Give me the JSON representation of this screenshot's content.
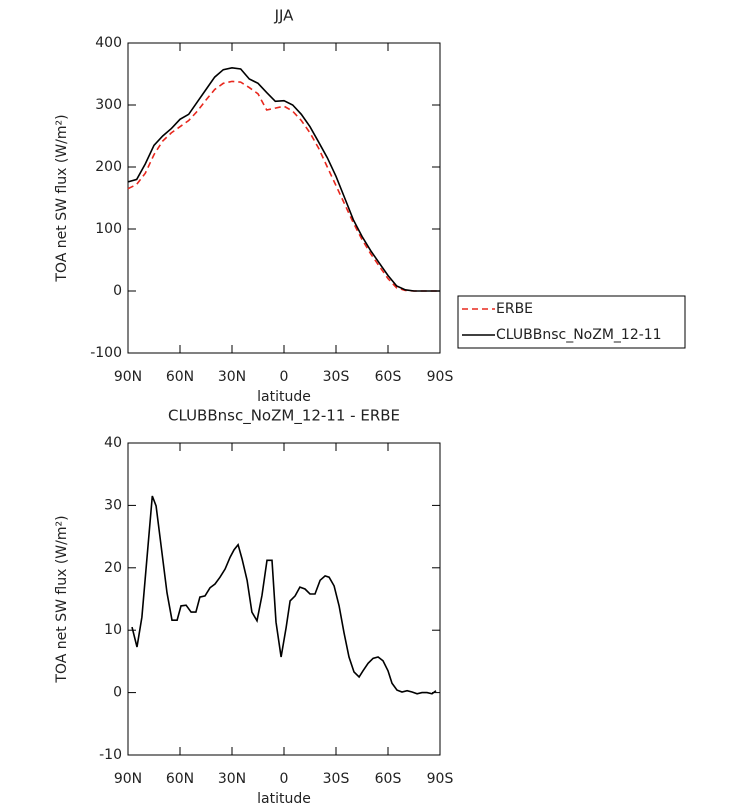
{
  "chart_data": [
    {
      "type": "line",
      "title": "JJA",
      "xlabel": "latitude",
      "ylabel": "TOA net SW flux (W/m²)",
      "x": [
        90,
        85,
        80,
        75,
        70,
        65,
        60,
        55,
        50,
        45,
        40,
        35,
        30,
        25,
        20,
        15,
        10,
        5,
        0,
        -5,
        -10,
        -15,
        -20,
        -25,
        -30,
        -35,
        -40,
        -45,
        -50,
        -55,
        -60,
        -65,
        -70,
        -75,
        -80,
        -85,
        -90
      ],
      "series": [
        {
          "name": "ERBE",
          "color": "#e8281e",
          "style": "dashed",
          "values": [
            165,
            172,
            190,
            220,
            242,
            255,
            265,
            275,
            290,
            308,
            325,
            335,
            338,
            337,
            328,
            318,
            292,
            295,
            298,
            290,
            275,
            255,
            230,
            200,
            170,
            140,
            110,
            83,
            60,
            40,
            20,
            5,
            1,
            0,
            0,
            0,
            0
          ]
        },
        {
          "name": "CLUBBnsc_NoZM_12-11",
          "color": "#000000",
          "style": "solid",
          "values": [
            176,
            180,
            205,
            235,
            250,
            262,
            277,
            285,
            305,
            325,
            345,
            357,
            360,
            358,
            342,
            335,
            320,
            306,
            307,
            300,
            285,
            265,
            240,
            215,
            185,
            150,
            115,
            88,
            65,
            45,
            25,
            8,
            2,
            0,
            0,
            0,
            0
          ]
        }
      ],
      "xlim": [
        90,
        -90
      ],
      "xticks": [
        {
          "value": 90,
          "label": "90N"
        },
        {
          "value": 60,
          "label": "60N"
        },
        {
          "value": 30,
          "label": "30N"
        },
        0,
        {
          "value": -30,
          "label": "30S"
        },
        {
          "value": -60,
          "label": "60S"
        },
        {
          "value": -90,
          "label": "90S"
        }
      ],
      "ylim": [
        -100,
        400
      ],
      "yticks": [
        -100,
        0,
        100,
        200,
        300,
        400
      ],
      "legend": "outside-right"
    },
    {
      "type": "line",
      "title": "CLUBBnsc_NoZM_12-11 - ERBE",
      "xlabel": "latitude",
      "ylabel": "TOA net SW flux (W/m²)",
      "x": [
        87.7,
        84.8,
        82,
        76,
        73.8,
        67.5,
        64.6,
        61.7,
        59.4,
        56.5,
        53.6,
        50.8,
        48.5,
        45.6,
        42.7,
        39.8,
        36.9,
        34,
        31.1,
        28.8,
        26.5,
        24.2,
        21.3,
        18.5,
        15.6,
        12.7,
        9.8,
        6.9,
        4.6,
        1.7,
        -1.2,
        -3.5,
        -6.4,
        -9.2,
        -12.1,
        -15,
        -17.9,
        -20.8,
        -23.7,
        -26,
        -28.9,
        -31.8,
        -34.6,
        -37.5,
        -40.4,
        -43.3,
        -45.6,
        -48.5,
        -51.4,
        -54.3,
        -57.1,
        -60,
        -62.3,
        -65.2,
        -68.1,
        -71,
        -73.9,
        -76.8,
        -79.6,
        -82.5,
        -85.4,
        -87.7
      ],
      "values": [
        10.5,
        7.3,
        12.1,
        31.5,
        29.9,
        16,
        11.6,
        11.6,
        13.9,
        14,
        12.9,
        12.9,
        15.3,
        15.5,
        16.8,
        17.4,
        18.5,
        19.8,
        21.7,
        22.9,
        23.7,
        21.4,
        18,
        12.9,
        11.5,
        15.6,
        21.2,
        21.2,
        11.3,
        5.7,
        10.4,
        14.7,
        15.5,
        16.9,
        16.6,
        15.8,
        15.8,
        18,
        18.7,
        18.5,
        17.1,
        13.9,
        9.6,
        5.7,
        3.3,
        2.5,
        3.5,
        4.7,
        5.5,
        5.7,
        5.1,
        3.5,
        1.5,
        0.4,
        0.1,
        0.3,
        0.1,
        -0.2,
        0,
        0,
        -0.2,
        0.3
      ],
      "color": "#000000",
      "xlim": [
        90,
        -90
      ],
      "xticks": [
        {
          "value": 90,
          "label": "90N"
        },
        {
          "value": 60,
          "label": "60N"
        },
        {
          "value": 30,
          "label": "30N"
        },
        0,
        {
          "value": -30,
          "label": "30S"
        },
        {
          "value": -60,
          "label": "60S"
        },
        {
          "value": -90,
          "label": "90S"
        }
      ],
      "ylim": [
        -10,
        40
      ],
      "yticks": [
        -10,
        0,
        10,
        20,
        30,
        40
      ]
    }
  ]
}
